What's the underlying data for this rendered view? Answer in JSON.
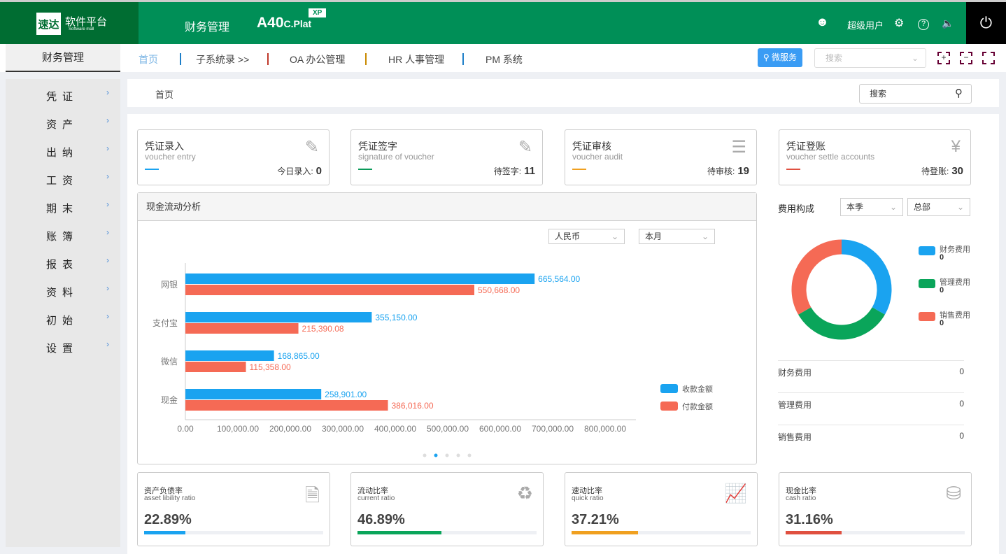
{
  "header": {
    "logo_mark": "速达",
    "logo_title": "软件平台",
    "logo_sub": "Software mall",
    "system": "财务管理",
    "product": "A40",
    "product_suffix": "C.Plat",
    "badge": "XP",
    "user": "超级用户",
    "icons": [
      "user-icon",
      "gear-icon",
      "help-icon",
      "speaker-icon",
      "power-icon"
    ]
  },
  "nav": {
    "left_tab": "财务管理",
    "items": [
      "首页",
      "子系统录 >>",
      "OA 办公管理",
      "HR 人事管理",
      "PM 系统"
    ],
    "separator_colors": [
      "#1e7fc8",
      "#c0392b",
      "#c98a00",
      "#1e7fc8"
    ],
    "micro_service": "微服务",
    "search_placeholder": "搜索"
  },
  "sidebar": {
    "items": [
      "凭证",
      "资产",
      "出纳",
      "工资",
      "期末",
      "账簿",
      "报表",
      "资料",
      "初始",
      "设置"
    ]
  },
  "breadcrumb": {
    "current": "首页",
    "search": "搜索"
  },
  "cards": [
    {
      "title": "凭证录入",
      "subtitle": "voucher entry",
      "label": "今日录入:",
      "count": "0",
      "color": "#1aa3f0"
    },
    {
      "title": "凭证签字",
      "subtitle": "signature of voucher",
      "label": "待签字:",
      "count": "11",
      "color": "#0a9a5a"
    },
    {
      "title": "凭证审核",
      "subtitle": "voucher audit",
      "label": "待审核:",
      "count": "19",
      "color": "#f0a020"
    },
    {
      "title": "凭证登账",
      "subtitle": "voucher settle accounts",
      "label": "待登账:",
      "count": "30",
      "color": "#e05040"
    }
  ],
  "cashflow": {
    "title": "现金流动分析",
    "currency": "人民币",
    "period": "本月"
  },
  "chart_data": [
    {
      "type": "bar",
      "orientation": "horizontal",
      "categories": [
        "网银",
        "支付宝",
        "微信",
        "现金"
      ],
      "series": [
        {
          "name": "收款金额",
          "color": "#1aa3f0",
          "values": [
            665564.0,
            355150.0,
            168865.0,
            258901.0
          ],
          "labels": [
            "665,564.00",
            "355,150.00",
            "168,865.00",
            "258,901.00"
          ]
        },
        {
          "name": "付款金额",
          "color": "#f56a55",
          "values": [
            550668.0,
            215390.08,
            115358.0,
            386016.0
          ],
          "labels": [
            "550,668.00",
            "215,390.08",
            "115,358.00",
            "386,016.00"
          ]
        }
      ],
      "xticks": [
        "0.00",
        "100,000.00",
        "200,000.00",
        "300,000.00",
        "400,000.00",
        "500,000.00",
        "600,000.00",
        "700,000.00",
        "800,000.00"
      ],
      "xlim": [
        0,
        800000
      ],
      "legend": "bottom-right",
      "pager_dots": 5,
      "pager_active": 1
    },
    {
      "type": "pie",
      "donut": true,
      "title": "费用构成",
      "series": [
        {
          "name": "财务费用",
          "value": 0,
          "color": "#1aa3f0"
        },
        {
          "name": "管理费用",
          "value": 0,
          "color": "#0aa55a"
        },
        {
          "name": "销售费用",
          "value": 0,
          "color": "#f56a55"
        }
      ]
    }
  ],
  "fees": {
    "title": "费用构成",
    "period": "本季",
    "scope": "总部",
    "rows": [
      {
        "name": "财务费用",
        "value": "0"
      },
      {
        "name": "管理费用",
        "value": "0"
      },
      {
        "name": "销售费用",
        "value": "0"
      }
    ]
  },
  "ratios": [
    {
      "title": "资产负债率",
      "subtitle": "asset libility ratio",
      "value": "22.89%",
      "percent": 22.89,
      "color": "#1aa3f0",
      "icon": "report-icon"
    },
    {
      "title": "流动比率",
      "subtitle": "current ratio",
      "value": "46.89%",
      "percent": 46.89,
      "color": "#0aa55a",
      "icon": "currency-cycle-icon"
    },
    {
      "title": "速动比率",
      "subtitle": "quick ratio",
      "value": "37.21%",
      "percent": 37.21,
      "color": "#f0a020",
      "icon": "chart-doc-icon"
    },
    {
      "title": "现金比率",
      "subtitle": "cash ratio",
      "value": "31.16%",
      "percent": 31.16,
      "color": "#e05040",
      "icon": "coins-icon"
    }
  ]
}
